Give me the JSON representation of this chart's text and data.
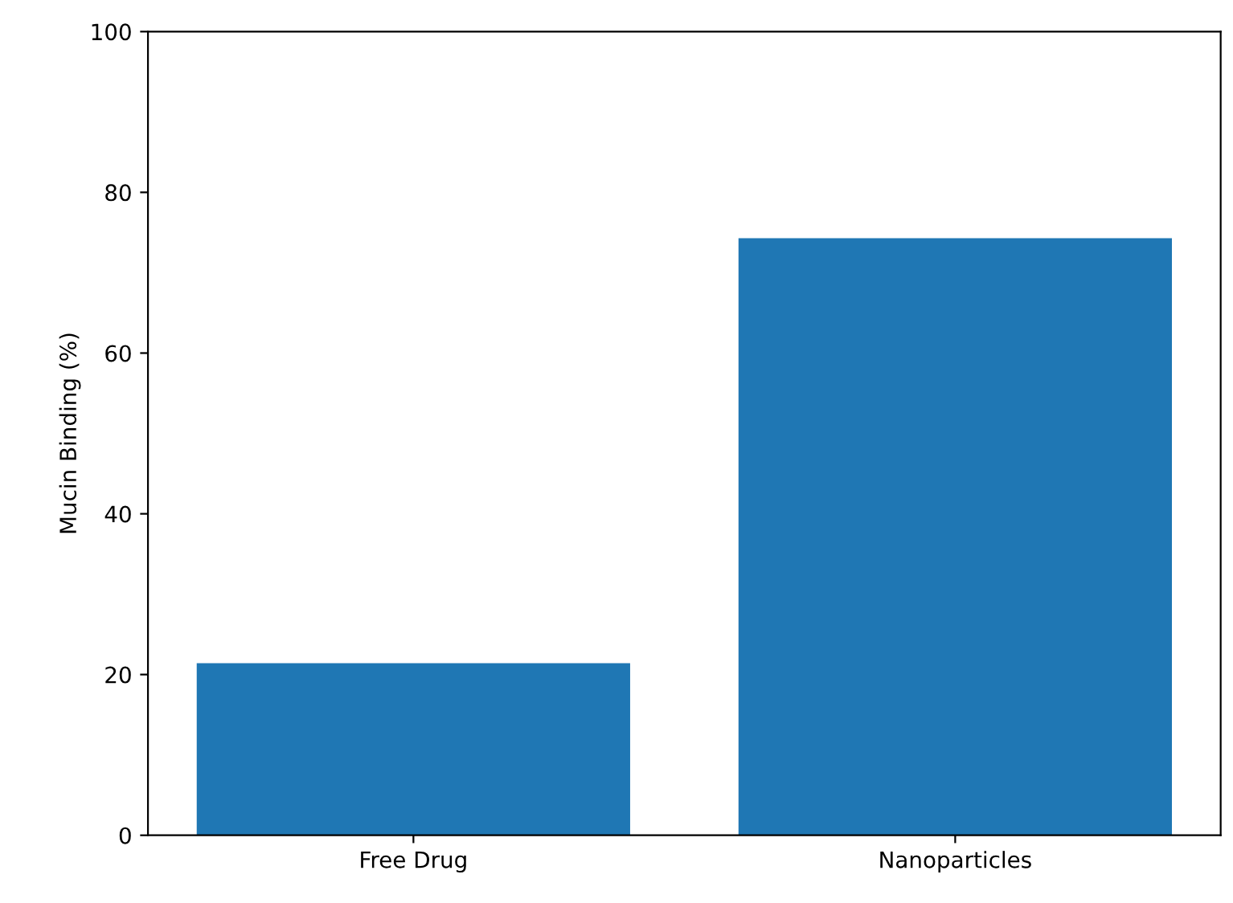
{
  "chart_data": {
    "type": "bar",
    "ylabel": "Mucin Binding (%)",
    "categories": [
      "Free Drug",
      "Nanoparticles"
    ],
    "values": [
      21.4,
      74.3
    ],
    "color": "#1f77b4",
    "ylim": [
      0,
      100
    ],
    "yticks": [
      0,
      20,
      40,
      60,
      80,
      100
    ],
    "grid": false
  }
}
